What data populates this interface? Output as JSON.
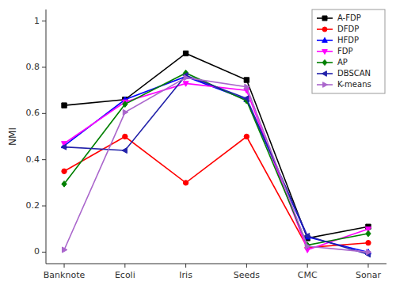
{
  "chart_data": {
    "type": "line",
    "categories": [
      "Banknote",
      "Ecoli",
      "Iris",
      "Seeds",
      "CMC",
      "Sonar"
    ],
    "series": [
      {
        "name": "A-FDP",
        "color": "#000000",
        "marker": "square",
        "values": [
          0.635,
          0.66,
          0.86,
          0.745,
          0.06,
          0.11
        ]
      },
      {
        "name": "DFDP",
        "color": "#ff0000",
        "marker": "circle",
        "values": [
          0.35,
          0.5,
          0.3,
          0.5,
          0.02,
          0.04
        ]
      },
      {
        "name": "HFDP",
        "color": "#0000ff",
        "marker": "triangle-up",
        "values": [
          0.46,
          0.66,
          0.76,
          0.66,
          0.065,
          0.0
        ]
      },
      {
        "name": "FDP",
        "color": "#ff00ff",
        "marker": "triangle-down",
        "values": [
          0.47,
          0.65,
          0.73,
          0.7,
          0.01,
          0.1
        ]
      },
      {
        "name": "AP",
        "color": "#008000",
        "marker": "diamond",
        "values": [
          0.295,
          0.64,
          0.775,
          0.655,
          0.03,
          0.08
        ]
      },
      {
        "name": "DBSCAN",
        "color": "#2222aa",
        "marker": "triangle-left",
        "values": [
          0.455,
          0.44,
          0.765,
          0.665,
          0.07,
          -0.01
        ]
      },
      {
        "name": "K-means",
        "color": "#aa66cc",
        "marker": "triangle-right",
        "values": [
          0.01,
          0.605,
          0.755,
          0.715,
          0.025,
          0.0
        ]
      }
    ],
    "ylabel": "NMI",
    "ylim": [
      -0.05,
      1.05
    ],
    "yticks": [
      0,
      0.2,
      0.4,
      0.6,
      0.8,
      1
    ],
    "legend": "upper right",
    "grid": false
  }
}
